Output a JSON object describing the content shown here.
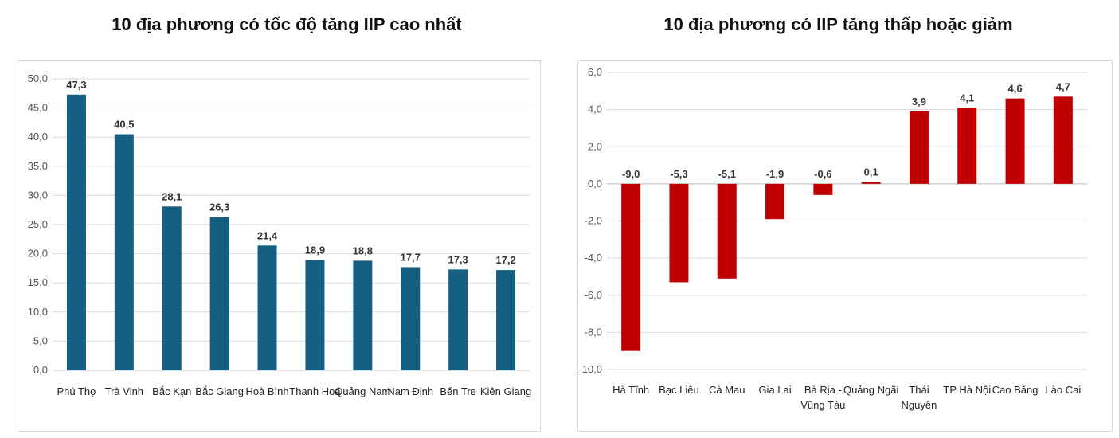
{
  "titles": {
    "left": "10 địa phương có tốc độ tăng IIP cao nhất",
    "right": "10 địa phương có IIP tăng thấp hoặc giảm"
  },
  "colors": {
    "left_bar": "#155F82",
    "right_bar": "#C00000",
    "grid": "#d9d9d9"
  },
  "chart_data": [
    {
      "type": "bar",
      "title": "10 địa phương có tốc độ tăng IIP cao nhất",
      "categories": [
        "Phú Thọ",
        "Trà Vinh",
        "Bắc Kạn",
        "Bắc Giang",
        "Hoà Bình",
        "Thanh Hoá",
        "Quảng Nam",
        "Nam Định",
        "Bến Tre",
        "Kiên Giang"
      ],
      "values": [
        47.3,
        40.5,
        28.1,
        26.3,
        21.4,
        18.9,
        18.8,
        17.7,
        17.3,
        17.2
      ],
      "data_labels": [
        "47,3",
        "40,5",
        "28,1",
        "26,3",
        "21,4",
        "18,9",
        "18,8",
        "17,7",
        "17,3",
        "17,2"
      ],
      "ylim": [
        0,
        50
      ],
      "yticks": [
        "0,0",
        "5,0",
        "10,0",
        "15,0",
        "20,0",
        "25,0",
        "30,0",
        "35,0",
        "40,0",
        "45,0",
        "50,0"
      ],
      "grid": true,
      "xlabel": "",
      "ylabel": ""
    },
    {
      "type": "bar",
      "title": "10 địa phương có IIP tăng thấp hoặc giảm",
      "categories": [
        "Hà Tĩnh",
        "Bạc Liêu",
        "Cà Mau",
        "Gia Lai",
        "Bà Rịa - Vũng Tàu",
        "Quảng Ngãi",
        "Thái Nguyên",
        "TP Hà Nội",
        "Cao Bằng",
        "Lào Cai"
      ],
      "category_lines": [
        [
          "Hà Tĩnh"
        ],
        [
          "Bạc Liêu"
        ],
        [
          "Cà Mau"
        ],
        [
          "Gia Lai"
        ],
        [
          "Bà Rịa -",
          "Vũng Tàu"
        ],
        [
          "Quảng Ngãi"
        ],
        [
          "Thái",
          "Nguyên"
        ],
        [
          "TP Hà Nội"
        ],
        [
          "Cao Bằng"
        ],
        [
          "Lào Cai"
        ]
      ],
      "values": [
        -9.0,
        -5.3,
        -5.1,
        -1.9,
        -0.6,
        0.1,
        3.9,
        4.1,
        4.6,
        4.7
      ],
      "data_labels": [
        "-9,0",
        "-5,3",
        "-5,1",
        "-1,9",
        "-0,6",
        "0,1",
        "3,9",
        "4,1",
        "4,6",
        "4,7"
      ],
      "ylim": [
        -10,
        6
      ],
      "yticks": [
        "-10,0",
        "-8,0",
        "-6,0",
        "-4,0",
        "-2,0",
        "0,0",
        "2,0",
        "4,0",
        "6,0"
      ],
      "grid": true,
      "xlabel": "",
      "ylabel": ""
    }
  ]
}
